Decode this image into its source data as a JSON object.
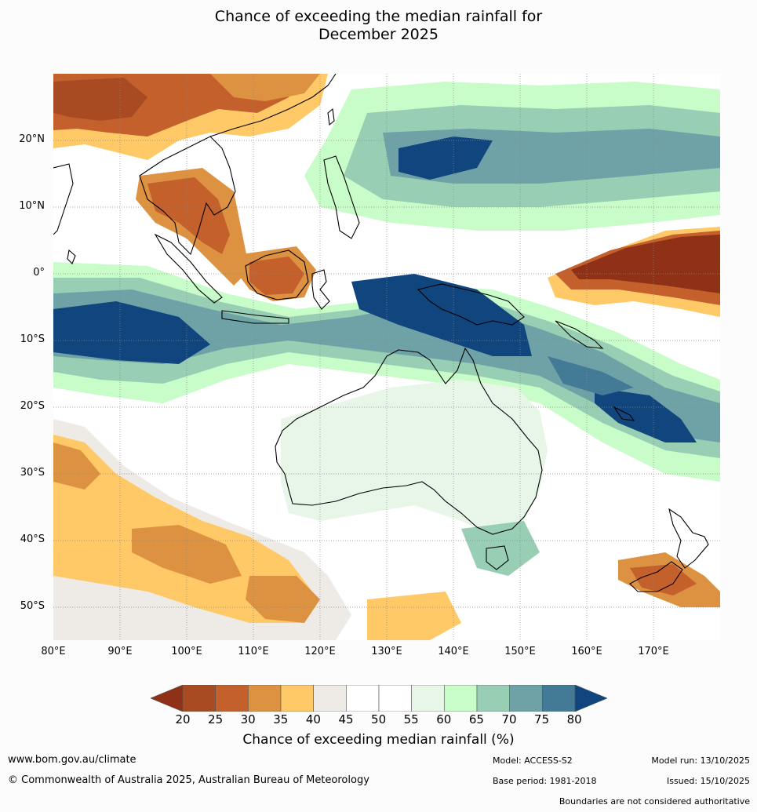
{
  "title_line1": "Chance of exceeding the median rainfall for",
  "title_line2": "December 2025",
  "map": {
    "lon_ticks": [
      "80°E",
      "90°E",
      "100°E",
      "110°E",
      "120°E",
      "130°E",
      "140°E",
      "150°E",
      "160°E",
      "170°E"
    ],
    "lat_ticks": [
      "20°N",
      "10°N",
      "0°",
      "10°S",
      "20°S",
      "30°S",
      "40°S",
      "50°S"
    ],
    "extent": {
      "lon": [
        80,
        180
      ],
      "lat": [
        -55,
        30
      ]
    }
  },
  "colorbar": {
    "ticks": [
      "20",
      "25",
      "30",
      "35",
      "40",
      "45",
      "50",
      "55",
      "60",
      "65",
      "70",
      "75",
      "80"
    ],
    "colors": [
      "#8f3117",
      "#a84a22",
      "#c3602c",
      "#dd9242",
      "#fec966",
      "#eeebe7",
      "#ffffff",
      "#ffffff",
      "#e8f6e8",
      "#c8fcc8",
      "#97ceb4",
      "#6ea2a6",
      "#437a96",
      "#11457e"
    ],
    "label": "Chance of exceeding median rainfall (%)"
  },
  "footer": {
    "website": "www.bom.gov.au/climate",
    "copyright": "© Commonwealth of Australia 2025, Australian Bureau of Meteorology",
    "model": "Model: ACCESS-S2",
    "base_period": "Base period: 1981-2018",
    "model_run": "Model run: 13/10/2025",
    "issued": "Issued: 15/10/2025",
    "boundaries": "Boundaries are not considered authoritative"
  }
}
